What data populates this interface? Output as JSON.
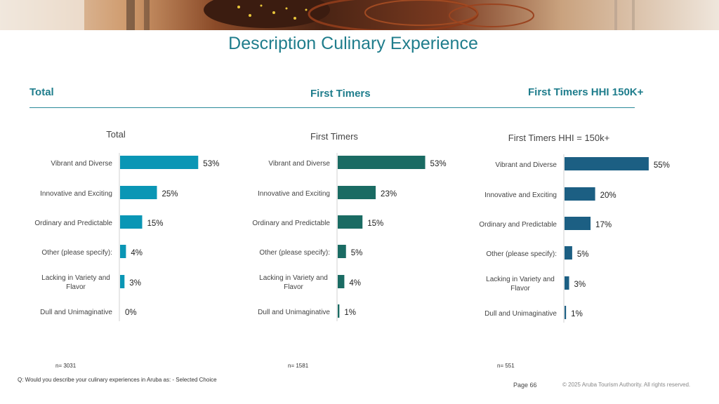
{
  "page_title": "Description Culinary Experience",
  "section_headers": [
    "Total",
    "First Timers",
    "First Timers HHI 150K+"
  ],
  "question": "Q: Would you describe your culinary experiences in Aruba as: - Selected Choice",
  "page_number": "Page 66",
  "copyright": "© 2025 Aruba Tourism Authority. All rights reserved.",
  "colors": {
    "title": "#1f7d8c",
    "total": "#0a96b5",
    "first_timers": "#1a6b63",
    "hhi": "#1c5f83"
  },
  "chart_data": [
    {
      "type": "bar",
      "title": "Total",
      "categories": [
        "Vibrant and Diverse",
        "Innovative and Exciting",
        "Ordinary and Predictable",
        "Other (please specify):",
        "Lacking in Variety and Flavor",
        "Dull and Unimaginative"
      ],
      "values": [
        53,
        25,
        15,
        4,
        3,
        0
      ],
      "value_labels": [
        "53%",
        "25%",
        "15%",
        "4%",
        "3%",
        "0%"
      ],
      "n": "n= 3031",
      "color": "#0a96b5"
    },
    {
      "type": "bar",
      "title": "First Timers",
      "categories": [
        "Vibrant and Diverse",
        "Innovative and Exciting",
        "Ordinary and Predictable",
        "Other (please specify):",
        "Lacking in Variety and Flavor",
        "Dull and Unimaginative"
      ],
      "values": [
        53,
        23,
        15,
        5,
        4,
        1
      ],
      "value_labels": [
        "53%",
        "23%",
        "15%",
        "5%",
        "4%",
        "1%"
      ],
      "n": "n= 1581",
      "color": "#1a6b63"
    },
    {
      "type": "bar",
      "title": "First Timers HHI = 150k+",
      "categories": [
        "Vibrant and Diverse",
        "Innovative and Exciting",
        "Ordinary and Predictable",
        "Other (please specify):",
        "Lacking in Variety and Flavor",
        "Dull and Unimaginative"
      ],
      "values": [
        55,
        20,
        17,
        5,
        3,
        1
      ],
      "value_labels": [
        "55%",
        "20%",
        "17%",
        "5%",
        "3%",
        "1%"
      ],
      "n": "n= 551",
      "color": "#1c5f83"
    }
  ]
}
